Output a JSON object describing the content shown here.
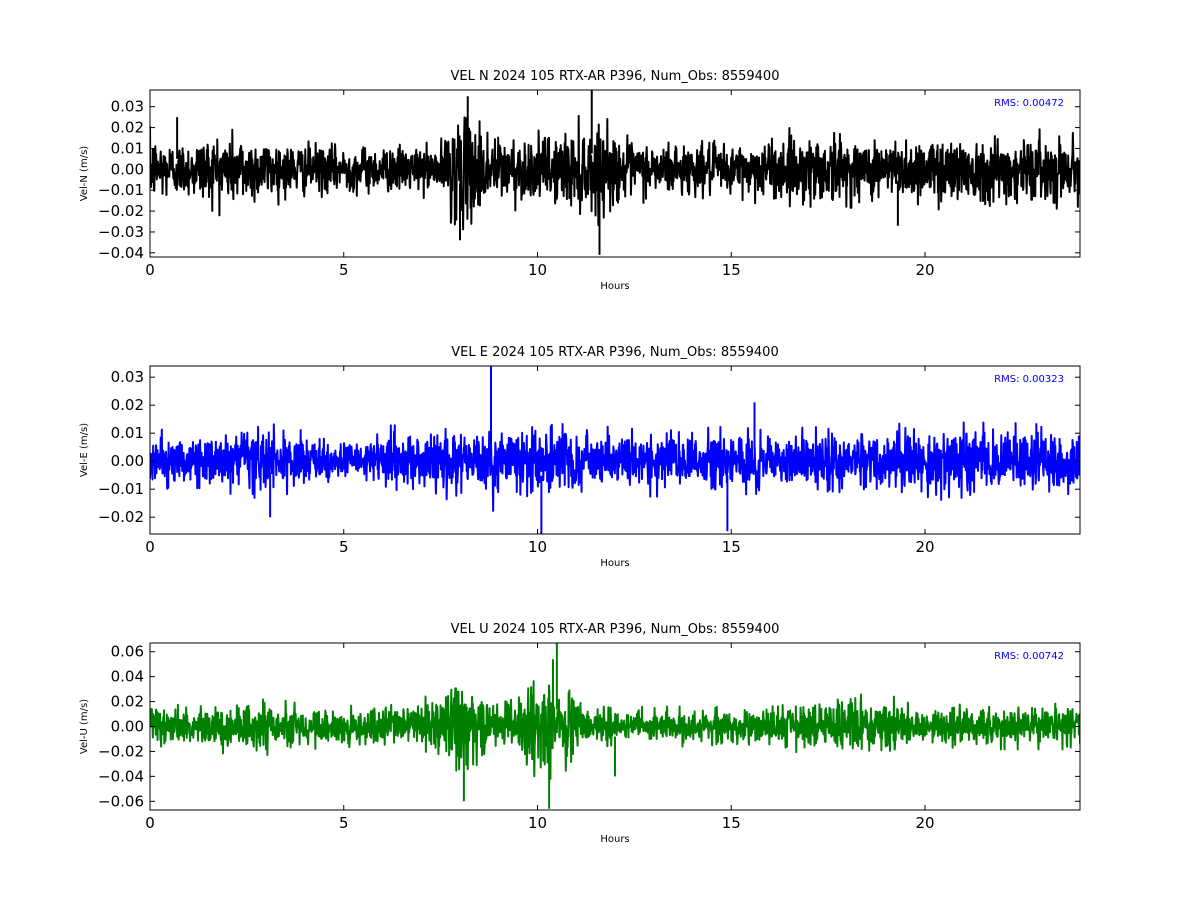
{
  "chart_data": [
    {
      "type": "line",
      "title": "VEL N 2024 105 RTX-AR  P396, Num_Obs: 8559400",
      "xlabel": "Hours",
      "ylabel": "Vel-N (m/s)",
      "xlim": [
        0,
        24
      ],
      "ylim": [
        -0.042,
        0.038
      ],
      "xticks": [
        0,
        5,
        10,
        15,
        20
      ],
      "xtick_labels": [
        "0",
        "5",
        "10",
        "15",
        "20"
      ],
      "yticks": [
        -0.04,
        -0.03,
        -0.02,
        -0.01,
        0.0,
        0.01,
        0.02,
        0.03
      ],
      "ytick_labels": [
        "−0.04",
        "−0.03",
        "−0.02",
        "−0.01",
        "0.00",
        "0.01",
        "0.02",
        "0.03"
      ],
      "annotation": "RMS:  0.00472",
      "annotation_color": "#0000ff",
      "line_color": "#000000",
      "series": [
        {
          "envelope_hours": [
            0,
            0.8,
            1.5,
            2.0,
            3.5,
            5.0,
            7.5,
            7.8,
            8.5,
            9.0,
            10.0,
            11.0,
            11.5,
            12.5,
            13.5,
            15.0,
            17.5,
            18.0,
            19.5,
            21.0,
            24.0
          ],
          "envelope_amplitude": [
            0.018,
            0.014,
            0.018,
            0.02,
            0.014,
            0.012,
            0.012,
            0.028,
            0.026,
            0.018,
            0.016,
            0.022,
            0.024,
            0.014,
            0.014,
            0.013,
            0.02,
            0.016,
            0.016,
            0.018,
            0.016
          ],
          "spikes": [
            [
              0.7,
              0.025
            ],
            [
              8.0,
              -0.034
            ],
            [
              8.2,
              0.035
            ],
            [
              11.4,
              0.038
            ],
            [
              11.6,
              -0.041
            ],
            [
              19.3,
              -0.027
            ]
          ]
        }
      ]
    },
    {
      "type": "line",
      "title": "VEL E 2024 105 RTX-AR  P396, Num_Obs: 8559400",
      "xlabel": "Hours",
      "ylabel": "Vel-E (m/s)",
      "xlim": [
        0,
        24
      ],
      "ylim": [
        -0.026,
        0.034
      ],
      "xticks": [
        0,
        5,
        10,
        15,
        20
      ],
      "xtick_labels": [
        "0",
        "5",
        "10",
        "15",
        "20"
      ],
      "yticks": [
        -0.02,
        -0.01,
        0.0,
        0.01,
        0.02,
        0.03
      ],
      "ytick_labels": [
        "−0.02",
        "−0.01",
        "0.00",
        "0.01",
        "0.02",
        "0.03"
      ],
      "annotation": "RMS:  0.00323",
      "annotation_color": "#0000ff",
      "line_color": "#0000ff",
      "series": [
        {
          "envelope_hours": [
            0,
            1.5,
            3.0,
            4.5,
            5.5,
            6.0,
            8.0,
            9.0,
            10.0,
            11.0,
            12.5,
            14.0,
            16.0,
            18.0,
            20.0,
            22.0,
            24.0
          ],
          "envelope_amplitude": [
            0.01,
            0.009,
            0.012,
            0.008,
            0.007,
            0.011,
            0.012,
            0.016,
            0.013,
            0.013,
            0.011,
            0.011,
            0.01,
            0.011,
            0.012,
            0.012,
            0.011
          ],
          "spikes": [
            [
              8.8,
              0.034
            ],
            [
              10.1,
              -0.026
            ],
            [
              14.9,
              -0.025
            ],
            [
              15.6,
              0.021
            ],
            [
              3.1,
              -0.02
            ]
          ]
        }
      ]
    },
    {
      "type": "line",
      "title": "VEL U 2024 105 RTX-AR  P396, Num_Obs: 8559400",
      "xlabel": "Hours",
      "ylabel": "Vel-U (m/s)",
      "xlim": [
        0,
        24
      ],
      "ylim": [
        -0.067,
        0.067
      ],
      "xticks": [
        0,
        5,
        10,
        15,
        20
      ],
      "xtick_labels": [
        "0",
        "5",
        "10",
        "15",
        "20"
      ],
      "yticks": [
        -0.06,
        -0.04,
        -0.02,
        0.0,
        0.02,
        0.04,
        0.06
      ],
      "ytick_labels": [
        "−0.06",
        "−0.04",
        "−0.02",
        "0.00",
        "0.02",
        "0.04",
        "0.06"
      ],
      "annotation": "RMS:  0.00742",
      "annotation_color": "#0000ff",
      "line_color": "#008000",
      "series": [
        {
          "envelope_hours": [
            0,
            1.0,
            2.5,
            3.5,
            5.0,
            7.0,
            7.5,
            8.0,
            8.5,
            9.0,
            10.0,
            10.5,
            11.0,
            11.5,
            13.0,
            15.0,
            18.0,
            19.0,
            20.0,
            24.0
          ],
          "envelope_amplitude": [
            0.018,
            0.014,
            0.022,
            0.018,
            0.014,
            0.02,
            0.036,
            0.042,
            0.026,
            0.02,
            0.036,
            0.042,
            0.028,
            0.016,
            0.014,
            0.014,
            0.024,
            0.022,
            0.016,
            0.016
          ],
          "spikes": [
            [
              8.1,
              -0.06
            ],
            [
              10.3,
              -0.066
            ],
            [
              10.5,
              0.067
            ],
            [
              10.4,
              0.054
            ],
            [
              12.0,
              -0.04
            ]
          ]
        }
      ]
    }
  ]
}
